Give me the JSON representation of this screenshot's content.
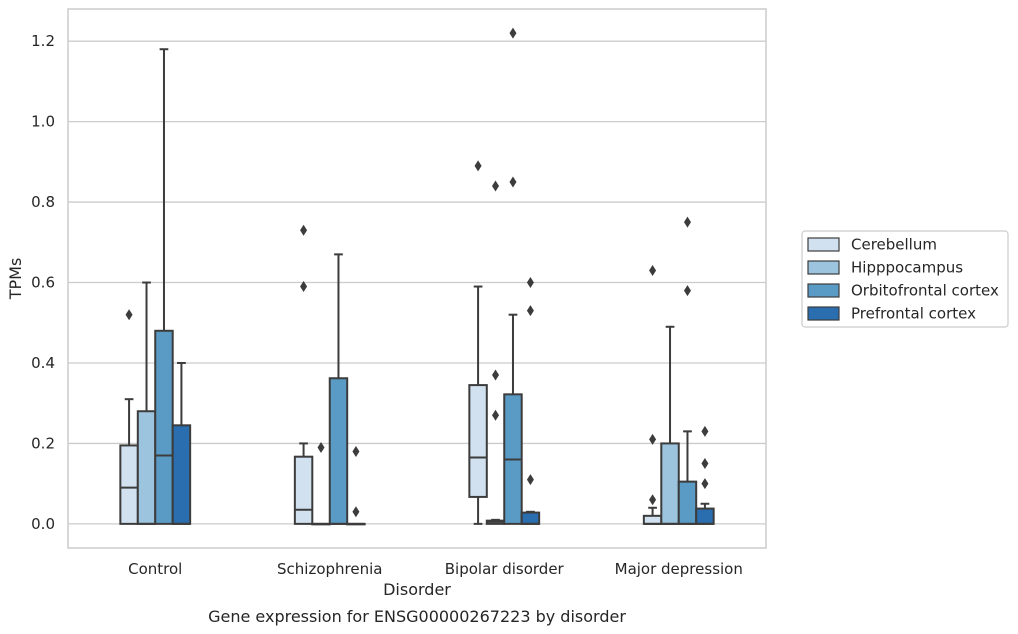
{
  "chart_data": {
    "type": "box",
    "title": "",
    "caption": "Gene expression for ENSG00000267223 by disorder",
    "xlabel": "Disorder",
    "ylabel": "TPMs",
    "ylim": [
      -0.06,
      1.28
    ],
    "yticks": [
      0.0,
      0.2,
      0.4,
      0.6,
      0.8,
      1.0,
      1.2
    ],
    "ytick_labels": [
      "0.0",
      "0.2",
      "0.4",
      "0.6",
      "0.8",
      "1.0",
      "1.2"
    ],
    "grid": "horizontal",
    "legend_position": "right",
    "categories": [
      "Control",
      "Schizophrenia",
      "Bipolar disorder",
      "Major depression"
    ],
    "series": [
      {
        "name": "Cerebellum",
        "color": "#d1e1f0",
        "boxes": [
          {
            "whisker_low": 0.0,
            "q1": 0.0,
            "median": 0.09,
            "q3": 0.195,
            "whisker_high": 0.31,
            "outliers": [
              0.52
            ]
          },
          {
            "whisker_low": 0.0,
            "q1": 0.0,
            "median": 0.035,
            "q3": 0.167,
            "whisker_high": 0.2,
            "outliers": [
              0.59,
              0.73
            ]
          },
          {
            "whisker_low": 0.0,
            "q1": 0.067,
            "median": 0.165,
            "q3": 0.345,
            "whisker_high": 0.59,
            "outliers": [
              0.89
            ]
          },
          {
            "whisker_low": 0.0,
            "q1": 0.0,
            "median": 0.0,
            "q3": 0.02,
            "whisker_high": 0.04,
            "outliers": [
              0.06,
              0.21,
              0.63
            ]
          }
        ]
      },
      {
        "name": "Hipppocampus",
        "color": "#9dc4de",
        "boxes": [
          {
            "whisker_low": 0.0,
            "q1": 0.0,
            "median": 0.0,
            "q3": 0.28,
            "whisker_high": 0.6,
            "outliers": []
          },
          {
            "whisker_low": 0.0,
            "q1": 0.0,
            "median": 0.0,
            "q3": 0.0,
            "whisker_high": 0.0,
            "outliers": [
              0.19
            ]
          },
          {
            "whisker_low": 0.0,
            "q1": 0.0,
            "median": 0.005,
            "q3": 0.008,
            "whisker_high": 0.01,
            "outliers": [
              0.27,
              0.37,
              0.84
            ]
          },
          {
            "whisker_low": 0.0,
            "q1": 0.0,
            "median": 0.0,
            "q3": 0.2,
            "whisker_high": 0.49,
            "outliers": []
          }
        ]
      },
      {
        "name": "Orbitofrontal cortex",
        "color": "#5a9bc6",
        "boxes": [
          {
            "whisker_low": 0.0,
            "q1": 0.0,
            "median": 0.17,
            "q3": 0.48,
            "whisker_high": 1.18,
            "outliers": []
          },
          {
            "whisker_low": 0.0,
            "q1": 0.0,
            "median": 0.0,
            "q3": 0.362,
            "whisker_high": 0.67,
            "outliers": []
          },
          {
            "whisker_low": 0.0,
            "q1": 0.0,
            "median": 0.16,
            "q3": 0.322,
            "whisker_high": 0.52,
            "outliers": [
              0.85,
              1.22
            ]
          },
          {
            "whisker_low": 0.0,
            "q1": 0.0,
            "median": 0.0,
            "q3": 0.105,
            "whisker_high": 0.23,
            "outliers": [
              0.58,
              0.75
            ]
          }
        ]
      },
      {
        "name": "Prefrontal cortex",
        "color": "#2a6eaf",
        "boxes": [
          {
            "whisker_low": 0.0,
            "q1": 0.0,
            "median": 0.0,
            "q3": 0.245,
            "whisker_high": 0.4,
            "outliers": []
          },
          {
            "whisker_low": 0.0,
            "q1": 0.0,
            "median": 0.0,
            "q3": 0.0,
            "whisker_high": 0.0,
            "outliers": [
              0.03,
              0.18
            ]
          },
          {
            "whisker_low": 0.0,
            "q1": 0.0,
            "median": 0.0,
            "q3": 0.028,
            "whisker_high": 0.03,
            "outliers": [
              0.11,
              0.53,
              0.6
            ]
          },
          {
            "whisker_low": 0.0,
            "q1": 0.0,
            "median": 0.0,
            "q3": 0.038,
            "whisker_high": 0.05,
            "outliers": [
              0.1,
              0.15,
              0.23
            ]
          }
        ]
      }
    ]
  }
}
